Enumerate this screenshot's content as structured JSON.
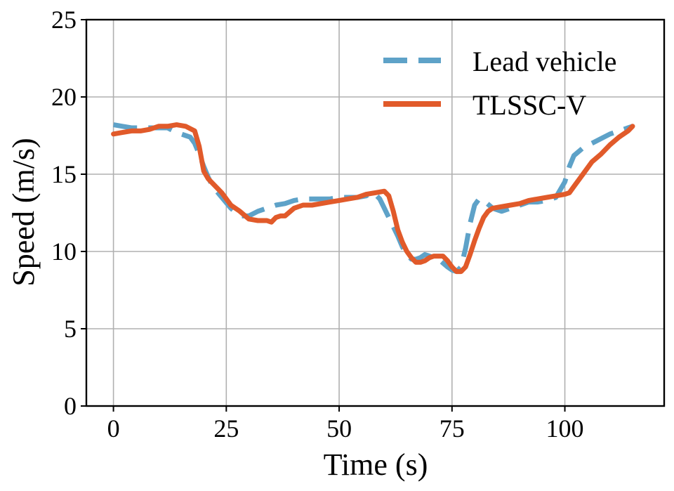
{
  "chart_data": {
    "type": "line",
    "xlabel": "Time (s)",
    "ylabel": "Speed (m/s)",
    "xlim": [
      -6,
      122
    ],
    "ylim": [
      0,
      25
    ],
    "xticks": [
      0,
      25,
      50,
      75,
      100
    ],
    "yticks": [
      0,
      5,
      10,
      15,
      20,
      25
    ],
    "grid": true,
    "legend_position": "top-right",
    "series": [
      {
        "name": "Lead vehicle",
        "style": "dashed",
        "color": "#5ea2c8",
        "x": [
          0,
          2,
          4,
          6,
          8,
          10,
          12,
          14,
          16,
          17,
          18,
          19,
          20,
          21,
          22,
          24,
          26,
          28,
          30,
          32,
          34,
          36,
          38,
          40,
          42,
          44,
          46,
          48,
          50,
          52,
          54,
          56,
          57,
          58,
          59,
          60,
          61,
          62,
          63,
          64,
          65,
          66,
          67,
          68,
          69,
          70,
          72,
          74,
          75,
          76,
          77,
          78,
          79,
          80,
          81,
          82,
          84,
          86,
          88,
          90,
          92,
          94,
          96,
          98,
          100,
          101,
          102,
          104,
          106,
          108,
          110,
          112,
          114,
          115
        ],
        "y": [
          18.2,
          18.1,
          18.0,
          18.0,
          18.0,
          18.0,
          18.0,
          17.7,
          17.5,
          17.4,
          17.0,
          16.3,
          15.5,
          14.8,
          14.2,
          13.5,
          12.8,
          12.3,
          12.3,
          12.6,
          12.8,
          13.0,
          13.1,
          13.3,
          13.4,
          13.4,
          13.4,
          13.4,
          13.5,
          13.5,
          13.5,
          13.6,
          13.8,
          13.7,
          13.4,
          12.8,
          12.2,
          11.6,
          11.0,
          10.3,
          9.8,
          9.5,
          9.5,
          9.6,
          9.8,
          9.7,
          9.5,
          9.0,
          8.8,
          8.7,
          9.0,
          10.2,
          11.8,
          13.0,
          13.4,
          13.3,
          12.8,
          12.6,
          12.8,
          13.0,
          13.2,
          13.2,
          13.3,
          13.5,
          14.5,
          15.5,
          16.2,
          16.7,
          17.0,
          17.3,
          17.6,
          17.8,
          18.0,
          18.1
        ]
      },
      {
        "name": "TLSSC-V",
        "style": "solid",
        "color": "#e15a2a",
        "x": [
          0,
          2,
          4,
          6,
          8,
          10,
          12,
          14,
          16,
          18,
          19,
          20,
          21,
          22,
          24,
          26,
          28,
          30,
          32,
          34,
          35,
          36,
          37,
          38,
          40,
          42,
          44,
          46,
          48,
          50,
          52,
          54,
          56,
          58,
          60,
          61,
          62,
          63,
          64,
          65,
          66,
          67,
          68,
          69,
          70,
          71,
          72,
          73,
          74,
          75,
          76,
          77,
          78,
          79,
          80,
          81,
          82,
          83,
          84,
          86,
          88,
          90,
          92,
          94,
          96,
          98,
          100,
          101,
          102,
          104,
          106,
          108,
          110,
          112,
          114,
          115
        ],
        "y": [
          17.6,
          17.7,
          17.8,
          17.8,
          17.9,
          18.1,
          18.1,
          18.2,
          18.1,
          17.8,
          16.8,
          15.2,
          14.7,
          14.4,
          13.8,
          13.0,
          12.6,
          12.1,
          12.0,
          12.0,
          11.9,
          12.2,
          12.3,
          12.3,
          12.8,
          13.0,
          13.0,
          13.1,
          13.2,
          13.3,
          13.4,
          13.5,
          13.7,
          13.8,
          13.9,
          13.6,
          12.6,
          11.4,
          10.6,
          10.0,
          9.6,
          9.3,
          9.3,
          9.4,
          9.6,
          9.7,
          9.7,
          9.7,
          9.4,
          9.0,
          8.7,
          8.7,
          9.0,
          9.8,
          10.7,
          11.5,
          12.2,
          12.6,
          12.8,
          12.9,
          13.0,
          13.1,
          13.3,
          13.4,
          13.5,
          13.6,
          13.7,
          13.8,
          14.2,
          15.0,
          15.8,
          16.3,
          16.9,
          17.4,
          17.8,
          18.1
        ]
      }
    ]
  }
}
